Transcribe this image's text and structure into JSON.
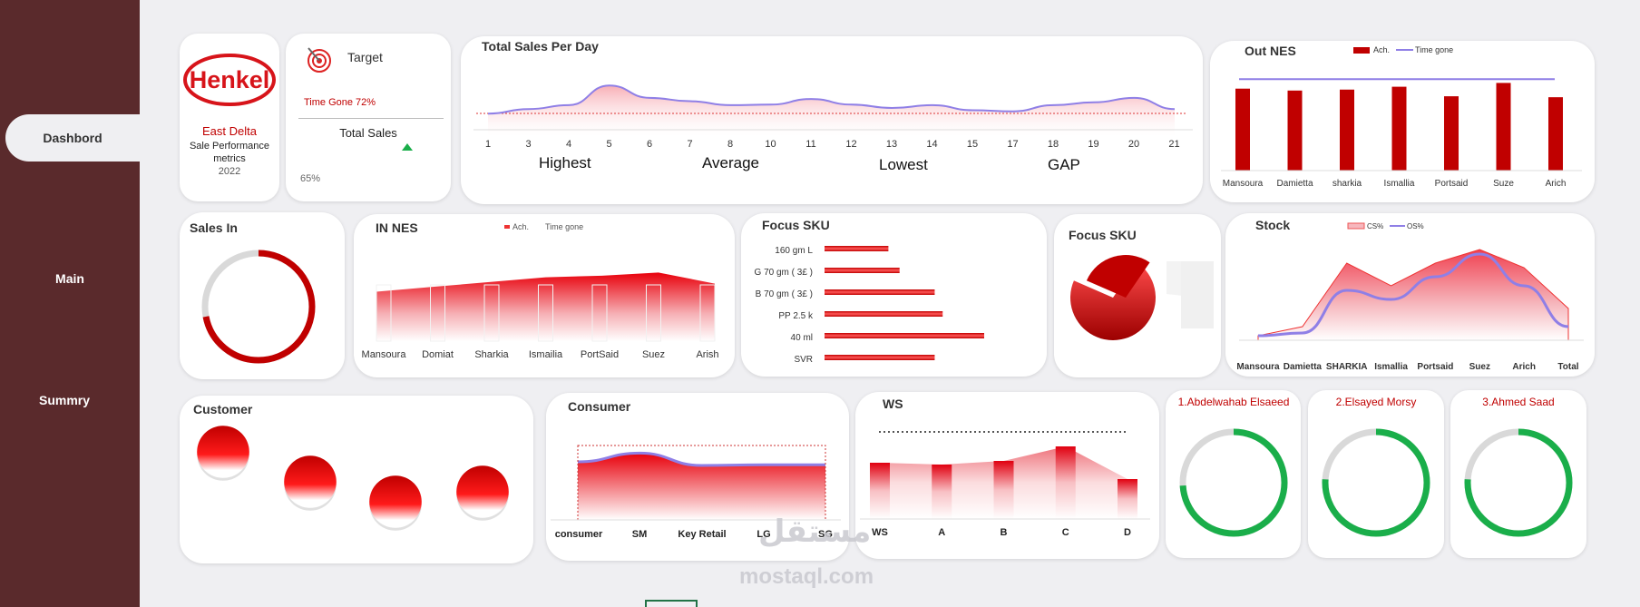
{
  "nav": {
    "dashboard": "Dashbord",
    "main": "Main",
    "summary": "Summry"
  },
  "brand": {
    "logo": "Henkel",
    "region": "East Delta",
    "subtitle": "Sale Performance metrics",
    "year": "2022"
  },
  "target": {
    "title": "Target",
    "time_gone": "Time Gone 72%",
    "total_sales_label": "Total Sales",
    "total_sales_value": "65%"
  },
  "sales_per_day": {
    "title": "Total Sales Per Day",
    "days": [
      "1",
      "3",
      "4",
      "5",
      "6",
      "7",
      "8",
      "10",
      "11",
      "12",
      "13",
      "14",
      "15",
      "17",
      "18",
      "19",
      "20",
      "21"
    ],
    "kpis": [
      "Highest",
      "Average",
      "Lowest",
      "GAP"
    ]
  },
  "watermark": {
    "arabic": "مستقل",
    "latin": "mostaql.com"
  },
  "colors": {
    "sidebar": "#5a2a2c",
    "red": "#c00000",
    "purple": "#8f7fe6",
    "green": "#1aae4a"
  },
  "chart_data": [
    {
      "type": "area",
      "title": "Total Sales Per Day",
      "x": [
        "1",
        "3",
        "4",
        "5",
        "6",
        "7",
        "8",
        "10",
        "11",
        "12",
        "13",
        "14",
        "15",
        "17",
        "18",
        "19",
        "20",
        "21"
      ],
      "values": [
        0.4,
        0.48,
        0.55,
        0.9,
        0.68,
        0.62,
        0.55,
        0.56,
        0.66,
        0.56,
        0.5,
        0.55,
        0.46,
        0.44,
        0.55,
        0.6,
        0.68,
        0.48
      ],
      "reference": 0.5
    },
    {
      "type": "bar",
      "title": "Out NES",
      "legend": [
        "Ach.",
        "Time gone"
      ],
      "categories": [
        "Mansoura",
        "Damietta",
        "sharkia",
        "Ismallia",
        "Portsaid",
        "Suze",
        "Arich"
      ],
      "values": [
        0.86,
        0.84,
        0.85,
        0.88,
        0.78,
        0.92,
        0.77
      ],
      "time_gone": 0.96
    },
    {
      "type": "donut",
      "title": "Sales In",
      "value": 0.72
    },
    {
      "type": "area",
      "title": "IN NES",
      "legend": [
        "Ach.",
        "Time gone"
      ],
      "categories": [
        "Mansoura",
        "Domiat",
        "Sharkia",
        "Ismailia",
        "PortSaid",
        "Suez",
        "Arish"
      ],
      "values": [
        0.62,
        0.68,
        0.74,
        0.8,
        0.82,
        0.86,
        0.72
      ]
    },
    {
      "type": "bar",
      "title": "Focus SKU",
      "categories": [
        "160 gm L",
        "G 70 gm ( 3£ )",
        "B 70 gm ( 3£ )",
        "PP 2.5 k",
        "40 ml",
        "SVR"
      ],
      "values": [
        0.4,
        0.47,
        0.69,
        0.74,
        1.0,
        0.69
      ]
    },
    {
      "type": "pie",
      "title": "Focus SKU",
      "values": [
        0.72,
        0.28
      ]
    },
    {
      "type": "area",
      "title": "Stock",
      "legend": [
        "CS%",
        "OS%"
      ],
      "categories": [
        "Mansoura",
        "Damietta",
        "SHARKIA",
        "Ismallia",
        "Portsaid",
        "Suez",
        "Arich",
        "Total"
      ],
      "series": [
        {
          "name": "CS%",
          "values": [
            0.05,
            0.15,
            0.85,
            0.6,
            0.85,
            1.0,
            0.8,
            0.35
          ]
        },
        {
          "name": "OS%",
          "values": [
            0.05,
            0.08,
            0.55,
            0.45,
            0.7,
            0.95,
            0.6,
            0.15
          ]
        }
      ]
    },
    {
      "type": "bubble",
      "title": "Customer",
      "values": [
        0.9,
        0.9,
        0.9,
        0.9
      ]
    },
    {
      "type": "area",
      "title": "Consumer",
      "categories": [
        "consumer",
        "SM",
        "Key Retail",
        "LG",
        "SG"
      ],
      "values": [
        0.8,
        0.92,
        0.75,
        0.76,
        0.76
      ]
    },
    {
      "type": "bar",
      "title": "WS",
      "categories": [
        "WS",
        "A",
        "B",
        "C",
        "D"
      ],
      "values": [
        0.62,
        0.6,
        0.64,
        0.8,
        0.44
      ],
      "target": 1.0
    },
    {
      "type": "donut",
      "title": "1.Abdelwahab Elsaeed",
      "value": 0.74
    },
    {
      "type": "donut",
      "title": "2.Elsayed Morsy",
      "value": 0.76
    },
    {
      "type": "donut",
      "title": "3.Ahmed Saad",
      "value": 0.76
    }
  ]
}
